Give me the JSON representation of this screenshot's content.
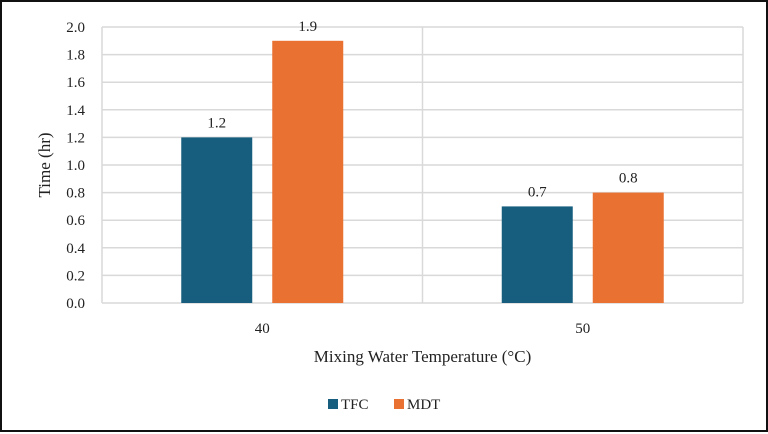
{
  "chart_data": {
    "type": "bar",
    "title": "",
    "xlabel": "Mixing Water Temperature  (°C)",
    "ylabel": "Time (hr)",
    "categories": [
      "40",
      "50"
    ],
    "series": [
      {
        "name": "TFC",
        "color": "#175e7e",
        "values": [
          1.2,
          0.7
        ]
      },
      {
        "name": "MDT",
        "color": "#e97132",
        "values": [
          1.9,
          0.8
        ]
      }
    ],
    "data_labels": [
      [
        "1.2",
        "0.7"
      ],
      [
        "1.9",
        "0.8"
      ]
    ],
    "ylim": [
      0,
      2.0
    ],
    "yticks": [
      "0.0",
      "0.2",
      "0.4",
      "0.6",
      "0.8",
      "1.0",
      "1.2",
      "1.4",
      "1.6",
      "1.8",
      "2.0"
    ],
    "grid": true,
    "legend_position": "bottom-center",
    "gridline_color": "#d9d9d9"
  }
}
